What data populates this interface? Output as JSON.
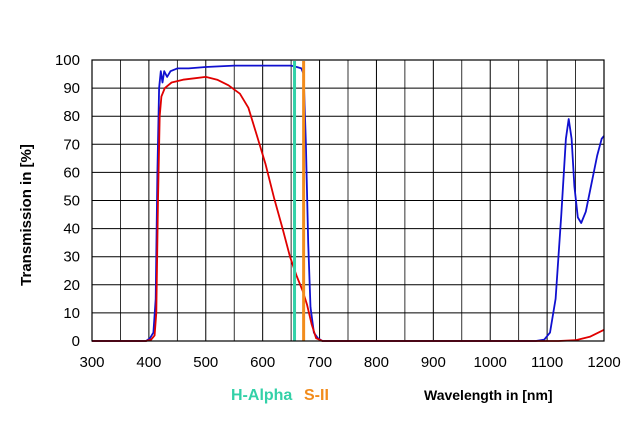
{
  "chart_data": {
    "type": "line",
    "title": "",
    "xlabel": "Wavelength in [nm]",
    "ylabel": "Transmission in [%]",
    "xlim": [
      300,
      1200
    ],
    "ylim": [
      0,
      100
    ],
    "grid": true,
    "x_major_ticks": [
      300,
      400,
      500,
      600,
      700,
      800,
      900,
      1000,
      1100,
      1200
    ],
    "x_minor_step": 50,
    "y_major_ticks": [
      0,
      10,
      20,
      30,
      40,
      50,
      60,
      70,
      80,
      90,
      100
    ],
    "series": [
      {
        "name": "blue-curve",
        "color": "#1010d0",
        "points": [
          [
            300,
            0
          ],
          [
            395,
            0
          ],
          [
            402,
            1
          ],
          [
            408,
            3
          ],
          [
            412,
            15
          ],
          [
            415,
            60
          ],
          [
            418,
            90
          ],
          [
            421,
            96
          ],
          [
            424,
            92
          ],
          [
            427,
            96
          ],
          [
            432,
            94
          ],
          [
            438,
            96
          ],
          [
            450,
            97
          ],
          [
            470,
            97
          ],
          [
            500,
            97.5
          ],
          [
            550,
            98
          ],
          [
            600,
            98
          ],
          [
            650,
            98
          ],
          [
            660,
            97.5
          ],
          [
            668,
            97
          ],
          [
            672,
            95
          ],
          [
            676,
            70
          ],
          [
            680,
            35
          ],
          [
            684,
            12
          ],
          [
            690,
            3
          ],
          [
            697,
            1
          ],
          [
            705,
            0
          ],
          [
            1080,
            0
          ],
          [
            1095,
            0.5
          ],
          [
            1105,
            3
          ],
          [
            1115,
            15
          ],
          [
            1125,
            45
          ],
          [
            1133,
            72
          ],
          [
            1138,
            79
          ],
          [
            1143,
            72
          ],
          [
            1148,
            55
          ],
          [
            1154,
            44
          ],
          [
            1160,
            42
          ],
          [
            1168,
            46
          ],
          [
            1178,
            56
          ],
          [
            1188,
            66
          ],
          [
            1196,
            72
          ],
          [
            1200,
            73
          ]
        ]
      },
      {
        "name": "red-curve",
        "color": "#e00000",
        "points": [
          [
            300,
            0
          ],
          [
            395,
            0
          ],
          [
            404,
            0.5
          ],
          [
            410,
            2
          ],
          [
            413,
            10
          ],
          [
            416,
            50
          ],
          [
            419,
            80
          ],
          [
            422,
            87
          ],
          [
            428,
            90
          ],
          [
            440,
            92
          ],
          [
            460,
            93
          ],
          [
            480,
            93.5
          ],
          [
            500,
            94
          ],
          [
            520,
            93
          ],
          [
            540,
            91
          ],
          [
            560,
            88
          ],
          [
            575,
            83
          ],
          [
            590,
            73
          ],
          [
            605,
            63
          ],
          [
            620,
            51
          ],
          [
            635,
            40
          ],
          [
            648,
            30
          ],
          [
            660,
            23
          ],
          [
            670,
            18
          ],
          [
            678,
            13
          ],
          [
            686,
            6
          ],
          [
            694,
            1
          ],
          [
            705,
            0
          ],
          [
            1120,
            0
          ],
          [
            1150,
            0.3
          ],
          [
            1175,
            1.5
          ],
          [
            1200,
            4
          ]
        ]
      }
    ],
    "vertical_markers": [
      {
        "label": "H-Alpha",
        "x": 656,
        "color": "#33d1a8"
      },
      {
        "label": "S-II",
        "x": 672,
        "color": "#f28c1c"
      }
    ]
  }
}
